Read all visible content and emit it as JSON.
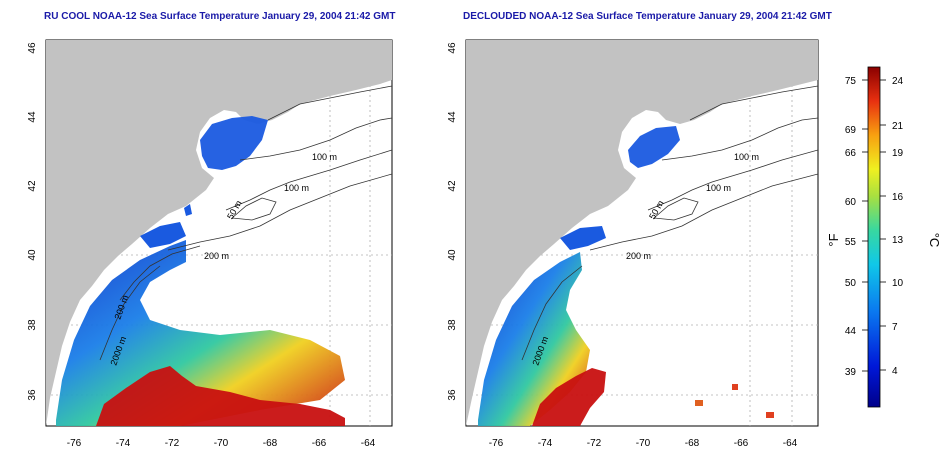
{
  "panels": [
    {
      "title": "RU COOL NOAA-12 Sea Surface Temperature January 29, 2004 21:42 GMT"
    },
    {
      "title": "DECLOUDED NOAA-12 Sea Surface Temperature January 29, 2004 21:42 GMT"
    }
  ],
  "axes": {
    "lat_ticks": [
      "46",
      "44",
      "42",
      "40",
      "38",
      "36"
    ],
    "lon_ticks": [
      "-76",
      "-74",
      "-72",
      "-70",
      "-68",
      "-66",
      "-64"
    ]
  },
  "contour_labels": [
    "100 m",
    "100 m",
    "50 m",
    "200 m",
    "200 m",
    "2000 m"
  ],
  "colorbar": {
    "fahrenheit_label": "°F",
    "celsius_label": "°C",
    "fahrenheit_ticks": [
      "75",
      "69",
      "66",
      "60",
      "55",
      "50",
      "44",
      "39"
    ],
    "celsius_ticks": [
      "24",
      "21",
      "19",
      "16",
      "13",
      "10",
      "7",
      "4"
    ]
  },
  "colors": {
    "land": "#c2c2c2",
    "title": "#1a1aa8",
    "cold": "#1030c8",
    "mid": "#30c8a0",
    "warm": "#c81010"
  }
}
